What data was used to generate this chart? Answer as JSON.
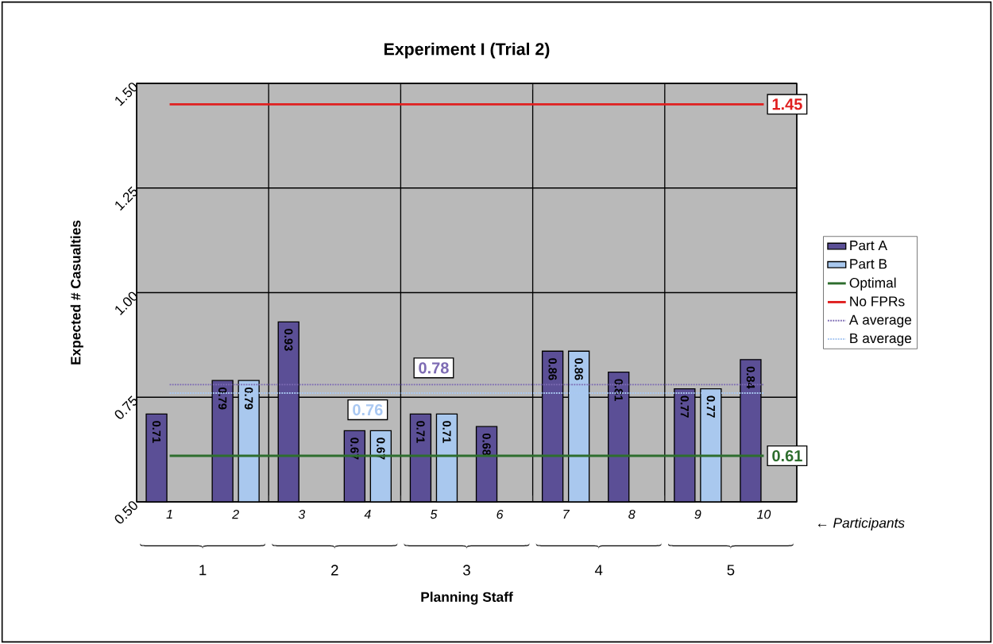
{
  "chart_data": {
    "type": "bar",
    "title": "Experiment I (Trial 2)",
    "xlabel": "Planning Staff",
    "ylabel": "Expected # Casualties",
    "categories": [
      "1",
      "2",
      "3",
      "4",
      "5",
      "6",
      "7",
      "8",
      "9",
      "10"
    ],
    "series": [
      {
        "name": "Part A",
        "color": "#5b4f96",
        "values": [
          0.71,
          0.79,
          0.93,
          0.67,
          0.71,
          0.68,
          0.86,
          0.81,
          0.77,
          0.84
        ],
        "value_labels": [
          "0.71",
          "0.79",
          "0.93",
          "0.67",
          "0.71",
          "0.68",
          "0.86",
          "0.81",
          "0.77",
          "0.84"
        ]
      },
      {
        "name": "Part B",
        "color": "#a9c8ee",
        "values": [
          null,
          0.79,
          null,
          0.67,
          0.71,
          null,
          0.86,
          null,
          0.77,
          null
        ],
        "value_labels": [
          null,
          "0.79",
          null,
          "0.67",
          "0.71",
          null,
          "0.86",
          null,
          "0.77",
          null
        ]
      },
      {
        "name": "Optimal",
        "type": "line",
        "color": "#2e6e2e",
        "line_style": "solid",
        "values": [
          0.61,
          0.61,
          0.61,
          0.61,
          0.61,
          0.61,
          0.61,
          0.61,
          0.61,
          0.61
        ],
        "value_labels": [
          null,
          null,
          null,
          null,
          null,
          null,
          null,
          null,
          null,
          "0.61"
        ]
      },
      {
        "name": "No FPRs",
        "type": "line",
        "color": "#e02020",
        "line_style": "solid",
        "values": [
          1.45,
          1.45,
          1.45,
          1.45,
          1.45,
          1.45,
          1.45,
          1.45,
          1.45,
          1.45
        ],
        "value_labels": [
          null,
          null,
          null,
          null,
          null,
          null,
          null,
          null,
          null,
          "1.45"
        ]
      },
      {
        "name": "A average",
        "type": "line",
        "color": "#7e6cb4",
        "line_style": "dotted",
        "values": [
          0.78,
          0.78,
          0.78,
          0.78,
          0.78,
          0.78,
          0.78,
          0.78,
          0.78,
          0.78
        ],
        "value_labels": [
          null,
          null,
          null,
          null,
          "0.78",
          null,
          null,
          null,
          null,
          null
        ]
      },
      {
        "name": "B average",
        "type": "line",
        "color": "#a9c8f2",
        "line_style": "dotted",
        "values": [
          0.76,
          0.76,
          0.76,
          0.76,
          0.76,
          0.76,
          0.76,
          0.76,
          0.76,
          0.76
        ],
        "value_labels": [
          null,
          null,
          null,
          "0.76",
          null,
          null,
          null,
          null,
          null,
          null
        ]
      }
    ],
    "ylim": [
      0.5,
      1.5
    ],
    "yticks": [
      {
        "value": 0.5,
        "label": "0.50"
      },
      {
        "value": 0.75,
        "label": "0.75"
      },
      {
        "value": 1.0,
        "label": "1.00"
      },
      {
        "value": 1.25,
        "label": "1.25"
      },
      {
        "value": 1.5,
        "label": "1.50"
      }
    ],
    "grid": true,
    "legend": "right",
    "marker": "none",
    "annotations": [
      "1",
      "2",
      "3",
      "4",
      "5",
      "← Participants"
    ]
  }
}
